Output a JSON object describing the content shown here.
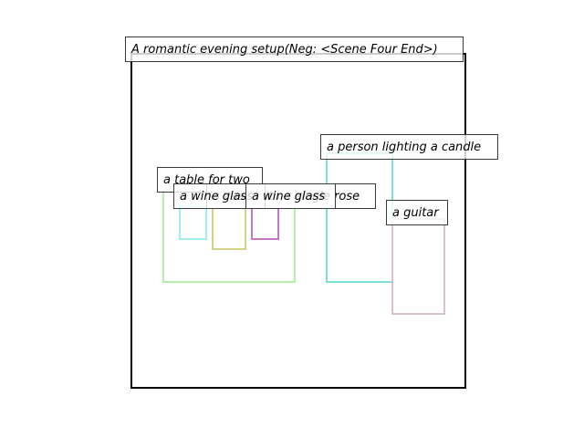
{
  "scene": {
    "title": "A romantic evening setup(Neg: <Scene Four End>)",
    "frame_color": "#000000"
  },
  "objects": [
    {
      "label": "a table for two",
      "color": "#b5f0a8"
    },
    {
      "label": "a wine glass",
      "color": "#9ef0f0"
    },
    {
      "label": "a vase with a single rose",
      "color": "#d4d488"
    },
    {
      "label": "a wine glass",
      "color": "#c878c8"
    },
    {
      "label": "a person lighting a candle",
      "color": "#7de0d4"
    },
    {
      "label": "a guitar",
      "color": "#dcc0c8"
    }
  ]
}
